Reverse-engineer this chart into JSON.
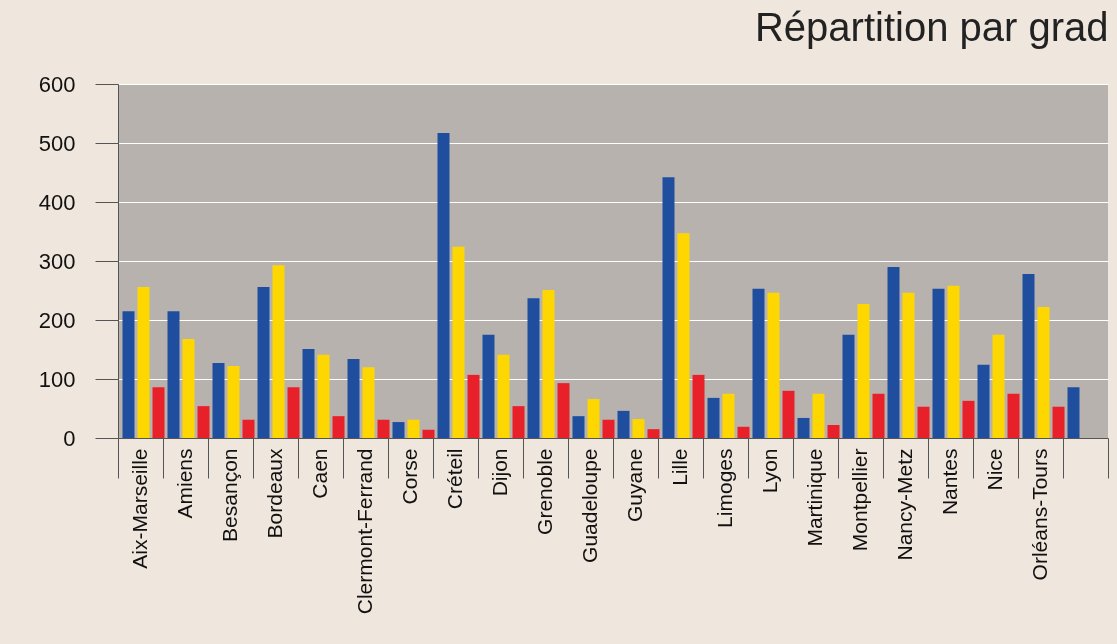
{
  "chart_data": {
    "type": "bar",
    "title": "Répartition par grad",
    "categories": [
      "Aix-Marseille",
      "Amiens",
      "Besançon",
      "Bordeaux",
      "Caen",
      "Clermont-Ferrand",
      "Corse",
      "Créteil",
      "Dijon",
      "Grenoble",
      "Guadeloupe",
      "Guyane",
      "Lille",
      "Limoges",
      "Lyon",
      "Martinique",
      "Montpellier",
      "Nancy-Metz",
      "Nantes",
      "Nice",
      "Orléans-Tours",
      null
    ],
    "series": [
      {
        "color": "#1f4e9e",
        "values": [
          215,
          215,
          127,
          256,
          151,
          134,
          27,
          517,
          175,
          237,
          37,
          46,
          442,
          68,
          253,
          34,
          175,
          290,
          253,
          124,
          278,
          86
        ]
      },
      {
        "color": "#ffd700",
        "values": [
          256,
          168,
          122,
          293,
          141,
          120,
          31,
          324,
          141,
          251,
          66,
          32,
          347,
          75,
          246,
          75,
          227,
          246,
          258,
          175,
          222,
          null
        ]
      },
      {
        "color": "#e8202a",
        "values": [
          86,
          54,
          31,
          86,
          37,
          31,
          14,
          107,
          54,
          93,
          31,
          15,
          107,
          19,
          80,
          22,
          75,
          53,
          63,
          75,
          53,
          null
        ]
      }
    ],
    "ylim": [
      0,
      600
    ],
    "yticks": [
      0,
      100,
      200,
      300,
      400,
      500,
      600
    ],
    "grid": "y",
    "legend": false
  }
}
